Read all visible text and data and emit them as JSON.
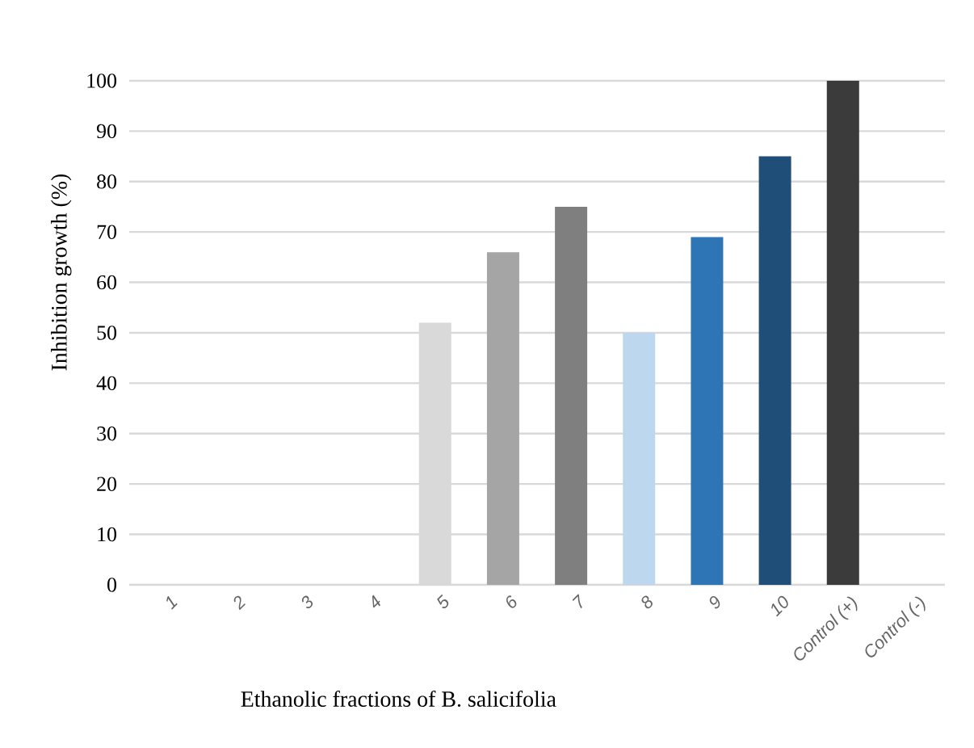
{
  "chart_data": {
    "type": "bar",
    "xlabel": "Ethanolic fractions of B. salicifolia",
    "ylabel": "Inhibition growth (%)",
    "categories": [
      "1",
      "2",
      "3",
      "4",
      "5",
      "6",
      "7",
      "8",
      "9",
      "10",
      "Control (+)",
      "Control (-)"
    ],
    "values": [
      0,
      0,
      0,
      0,
      52,
      66,
      75,
      50,
      69,
      85,
      100,
      0
    ],
    "colors": [
      "#d9d9d9",
      "#d9d9d9",
      "#d9d9d9",
      "#d9d9d9",
      "#d9d9d9",
      "#a5a5a5",
      "#7f7f7f",
      "#bdd7ee",
      "#2e75b6",
      "#1f4e79",
      "#3b3b3b",
      "#3b3b3b"
    ],
    "ylim": [
      0,
      100
    ],
    "yticks": [
      0,
      10,
      20,
      30,
      40,
      50,
      60,
      70,
      80,
      90,
      100
    ],
    "grid": "y"
  }
}
